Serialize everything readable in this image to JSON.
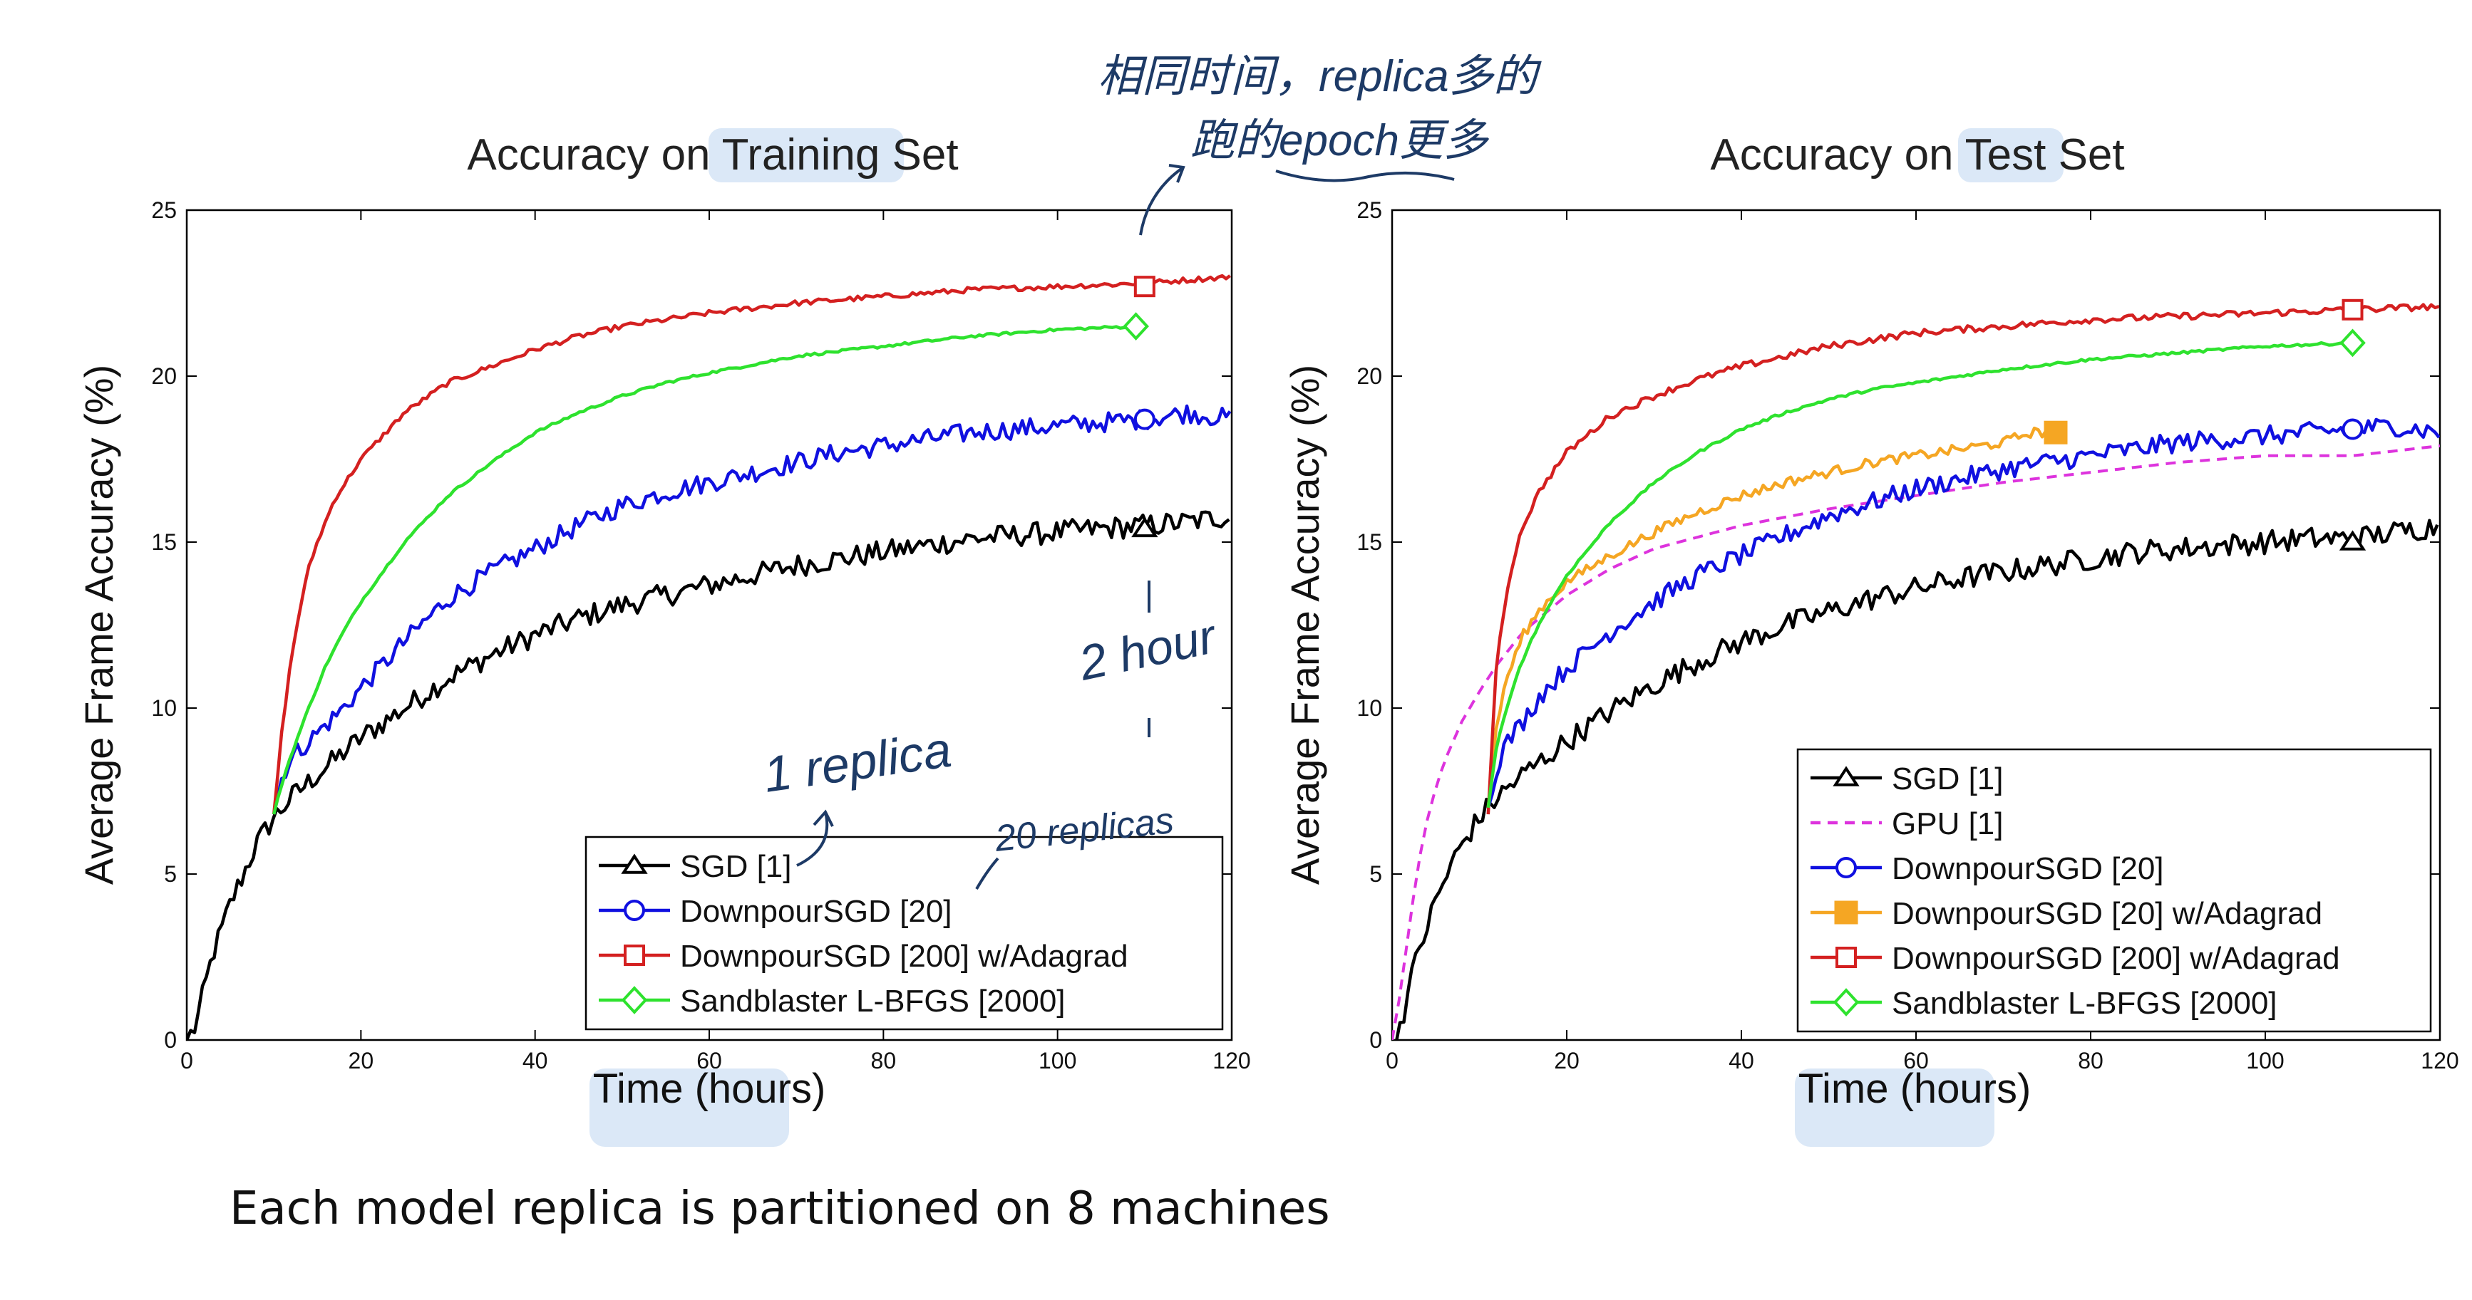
{
  "caption": "Each model replica is partitioned on 8 machines",
  "annotations": {
    "top_note_line1": "相同时间，replica多的",
    "top_note_line2": "跑的epoch更多",
    "hour_note": "2 hour",
    "one_replica": "1 replica",
    "twenty_replicas": "20 replicas"
  },
  "chart_data": [
    {
      "type": "line",
      "title": "Accuracy on Training Set",
      "xlabel": "Time (hours)",
      "ylabel": "Average Frame Accuracy (%)",
      "xlim": [
        0,
        120
      ],
      "ylim": [
        0,
        25
      ],
      "xticks": [
        0,
        20,
        40,
        60,
        80,
        100,
        120
      ],
      "yticks": [
        0,
        5,
        10,
        15,
        20,
        25
      ],
      "grid": false,
      "legend_position": "bottom-right",
      "highlighted_words": [
        "Training",
        "Time (hours)"
      ],
      "series": [
        {
          "name": "SGD [1]",
          "color": "#000000",
          "marker": "triangle",
          "marker_at": [
            110,
            15.4
          ],
          "noise": 0.35,
          "x": [
            0,
            1,
            2,
            3,
            4,
            5,
            6,
            7,
            8,
            9,
            10,
            12,
            15,
            20,
            25,
            30,
            35,
            40,
            45,
            50,
            55,
            60,
            65,
            70,
            75,
            80,
            85,
            90,
            95,
            100,
            105,
            110,
            115,
            120
          ],
          "y": [
            0,
            0.4,
            1.5,
            2.6,
            3.3,
            4.1,
            4.7,
            5.3,
            5.9,
            6.3,
            6.7,
            7.3,
            8.0,
            9.1,
            10.0,
            10.9,
            11.6,
            12.2,
            12.7,
            13.1,
            13.4,
            13.7,
            14.0,
            14.3,
            14.5,
            14.7,
            14.9,
            15.1,
            15.2,
            15.3,
            15.4,
            15.5,
            15.6,
            15.8
          ]
        },
        {
          "name": "DownpourSGD [20]",
          "color": "#1010e0",
          "marker": "circle",
          "marker_at": [
            110,
            18.7
          ],
          "noise": 0.3,
          "x": [
            10,
            11,
            12,
            14,
            16,
            18,
            20,
            25,
            30,
            35,
            40,
            45,
            50,
            55,
            60,
            65,
            70,
            75,
            80,
            85,
            90,
            95,
            100,
            105,
            110,
            115,
            120
          ],
          "y": [
            6.8,
            8.0,
            8.5,
            9.0,
            9.5,
            10.0,
            10.6,
            12.0,
            13.3,
            14.1,
            14.8,
            15.5,
            16.1,
            16.5,
            16.8,
            17.1,
            17.4,
            17.7,
            17.9,
            18.1,
            18.3,
            18.4,
            18.5,
            18.6,
            18.7,
            18.9,
            18.7
          ]
        },
        {
          "name": "DownpourSGD [200] w/Adagrad",
          "color": "#d42020",
          "marker": "square",
          "marker_at": [
            110,
            22.7
          ],
          "noise": 0.08,
          "x": [
            10,
            11,
            12,
            13,
            14,
            15,
            17,
            20,
            25,
            30,
            35,
            40,
            45,
            50,
            55,
            60,
            70,
            80,
            90,
            100,
            110,
            120
          ],
          "y": [
            6.8,
            9.5,
            11.5,
            13.0,
            14.2,
            15.0,
            16.3,
            17.5,
            18.9,
            19.8,
            20.3,
            20.8,
            21.2,
            21.5,
            21.7,
            21.9,
            22.2,
            22.4,
            22.6,
            22.7,
            22.8,
            23.0
          ]
        },
        {
          "name": "Sandblaster L-BFGS [2000]",
          "color": "#2ee22e",
          "marker": "diamond",
          "marker_at": [
            109,
            21.5
          ],
          "noise": 0.04,
          "x": [
            10,
            11,
            12,
            14,
            16,
            18,
            20,
            25,
            30,
            35,
            40,
            45,
            50,
            55,
            60,
            70,
            80,
            90,
            100,
            109
          ],
          "y": [
            6.8,
            7.8,
            8.6,
            10.0,
            11.3,
            12.3,
            13.2,
            15.0,
            16.4,
            17.4,
            18.3,
            18.9,
            19.4,
            19.8,
            20.1,
            20.6,
            20.9,
            21.2,
            21.4,
            21.5
          ]
        }
      ],
      "legend": [
        {
          "label": "SGD [1]",
          "color": "#000000",
          "marker": "triangle",
          "style": "solid"
        },
        {
          "label": "DownpourSGD [20]",
          "color": "#1010e0",
          "marker": "circle",
          "style": "solid"
        },
        {
          "label": "DownpourSGD [200] w/Adagrad",
          "color": "#d42020",
          "marker": "square",
          "style": "solid"
        },
        {
          "label": "Sandblaster L-BFGS [2000]",
          "color": "#2ee22e",
          "marker": "diamond",
          "style": "solid"
        }
      ]
    },
    {
      "type": "line",
      "title": "Accuracy on Test Set",
      "xlabel": "Time (hours)",
      "ylabel": "Average Frame Accuracy (%)",
      "xlim": [
        0,
        120
      ],
      "ylim": [
        0,
        25
      ],
      "xticks": [
        0,
        20,
        40,
        60,
        80,
        100,
        120
      ],
      "yticks": [
        0,
        5,
        10,
        15,
        20,
        25
      ],
      "grid": false,
      "legend_position": "bottom-right",
      "highlighted_words": [
        "Test",
        "Time (hours)"
      ],
      "series": [
        {
          "name": "SGD [1]",
          "color": "#000000",
          "marker": "triangle",
          "marker_at": [
            110,
            15.0
          ],
          "noise": 0.35,
          "x": [
            0,
            1,
            2,
            3,
            4,
            5,
            6,
            7,
            8,
            9,
            10,
            12,
            15,
            20,
            25,
            30,
            35,
            40,
            45,
            50,
            55,
            60,
            65,
            70,
            75,
            80,
            85,
            90,
            95,
            100,
            105,
            110,
            115,
            120
          ],
          "y": [
            0,
            0.5,
            1.6,
            2.7,
            3.4,
            4.2,
            4.8,
            5.4,
            5.9,
            6.3,
            6.7,
            7.3,
            8.0,
            9.0,
            9.9,
            10.7,
            11.4,
            12.0,
            12.5,
            12.9,
            13.3,
            13.6,
            13.9,
            14.1,
            14.3,
            14.5,
            14.7,
            14.8,
            14.9,
            15.0,
            15.1,
            15.1,
            15.3,
            15.5
          ]
        },
        {
          "name": "GPU [1]",
          "color": "#dd33dd",
          "marker": "none",
          "dashed": true,
          "noise": 0,
          "x": [
            0,
            1,
            2,
            3,
            4,
            5,
            6,
            8,
            10,
            12,
            15,
            20,
            25,
            30,
            40,
            50,
            60,
            70,
            80,
            90,
            100,
            110,
            120
          ],
          "y": [
            0,
            1.5,
            3.5,
            5.3,
            6.6,
            7.6,
            8.4,
            9.6,
            10.5,
            11.3,
            12.3,
            13.4,
            14.2,
            14.8,
            15.5,
            16.0,
            16.4,
            16.8,
            17.1,
            17.4,
            17.6,
            17.6,
            17.9
          ]
        },
        {
          "name": "DownpourSGD [20]",
          "color": "#1010e0",
          "marker": "circle",
          "marker_at": [
            110,
            18.4
          ],
          "noise": 0.3,
          "x": [
            11,
            12,
            13,
            15,
            17,
            20,
            25,
            30,
            35,
            40,
            45,
            50,
            55,
            60,
            65,
            70,
            75,
            80,
            85,
            90,
            95,
            100,
            105,
            110,
            115,
            120
          ],
          "y": [
            7.0,
            8.3,
            8.9,
            9.6,
            10.4,
            11.2,
            12.3,
            13.2,
            14.0,
            14.6,
            15.2,
            15.8,
            16.2,
            16.6,
            16.9,
            17.2,
            17.4,
            17.6,
            17.8,
            18.0,
            18.1,
            18.2,
            18.3,
            18.4,
            18.5,
            18.3
          ]
        },
        {
          "name": "DownpourSGD [20] w/Adagrad",
          "color": "#f5a623",
          "marker": "filled-square",
          "marker_at": [
            76,
            18.3
          ],
          "noise": 0.15,
          "x": [
            11,
            12,
            13,
            15,
            17,
            20,
            25,
            30,
            35,
            40,
            45,
            50,
            55,
            60,
            65,
            70,
            73,
            76
          ],
          "y": [
            7.0,
            9.5,
            10.8,
            12.2,
            13.0,
            13.8,
            14.6,
            15.3,
            15.9,
            16.4,
            16.8,
            17.1,
            17.4,
            17.6,
            17.8,
            18.0,
            18.3,
            18.3
          ]
        },
        {
          "name": "DownpourSGD [200] w/Adagrad",
          "color": "#d42020",
          "marker": "square",
          "marker_at": [
            110,
            22.0
          ],
          "noise": 0.1,
          "x": [
            11,
            12,
            13,
            14,
            15,
            17,
            20,
            25,
            30,
            35,
            40,
            45,
            50,
            55,
            60,
            70,
            80,
            90,
            100,
            110,
            120
          ],
          "y": [
            6.8,
            11.5,
            13.3,
            14.6,
            15.5,
            16.6,
            17.7,
            18.8,
            19.4,
            19.9,
            20.3,
            20.6,
            20.9,
            21.1,
            21.3,
            21.5,
            21.7,
            21.8,
            21.9,
            22.0,
            22.1
          ]
        },
        {
          "name": "Sandblaster L-BFGS [2000]",
          "color": "#2ee22e",
          "marker": "diamond",
          "marker_at": [
            110,
            21.0
          ],
          "noise": 0.04,
          "x": [
            11,
            12,
            14,
            16,
            18,
            20,
            25,
            30,
            35,
            40,
            45,
            50,
            55,
            60,
            70,
            80,
            90,
            100,
            110
          ],
          "y": [
            7.0,
            8.9,
            10.8,
            12.1,
            13.1,
            14.0,
            15.6,
            16.8,
            17.7,
            18.4,
            18.9,
            19.3,
            19.6,
            19.8,
            20.2,
            20.5,
            20.7,
            20.9,
            21.0
          ]
        }
      ],
      "legend": [
        {
          "label": "SGD [1]",
          "color": "#000000",
          "marker": "triangle",
          "style": "solid"
        },
        {
          "label": "GPU [1]",
          "color": "#dd33dd",
          "marker": "none",
          "style": "dashed"
        },
        {
          "label": "DownpourSGD [20]",
          "color": "#1010e0",
          "marker": "circle",
          "style": "solid"
        },
        {
          "label": "DownpourSGD [20] w/Adagrad",
          "color": "#f5a623",
          "marker": "filled-square",
          "style": "solid"
        },
        {
          "label": "DownpourSGD [200] w/Adagrad",
          "color": "#d42020",
          "marker": "square",
          "style": "solid"
        },
        {
          "label": "Sandblaster L-BFGS [2000]",
          "color": "#2ee22e",
          "marker": "diamond",
          "style": "solid"
        }
      ]
    }
  ]
}
